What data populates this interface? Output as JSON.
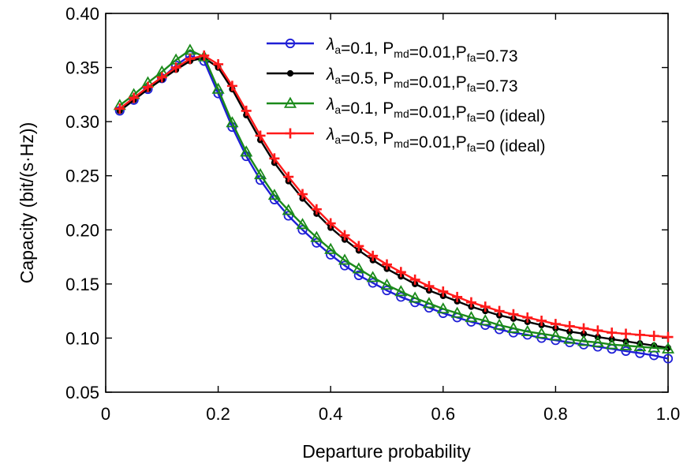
{
  "chart_data": {
    "type": "line",
    "title": "",
    "xlabel": "Departure probability",
    "ylabel": "Capacity (bit/(s·Hz))",
    "xlim": [
      0,
      1.0
    ],
    "ylim": [
      0.05,
      0.4
    ],
    "x_ticks": [
      0,
      0.2,
      0.4,
      0.6,
      0.8,
      1.0
    ],
    "x_tick_labels": [
      "0",
      "0.2",
      "0.4",
      "0.6",
      "0.8",
      "1.0"
    ],
    "y_ticks": [
      0.05,
      0.1,
      0.15,
      0.2,
      0.25,
      0.3,
      0.35,
      0.4
    ],
    "y_tick_labels": [
      "0.05",
      "0.10",
      "0.15",
      "0.20",
      "0.25",
      "0.30",
      "0.35",
      "0.40"
    ],
    "grid": false,
    "legend_position": "top-right",
    "x": [
      0.025,
      0.05,
      0.075,
      0.1,
      0.125,
      0.15,
      0.175,
      0.2,
      0.225,
      0.25,
      0.275,
      0.3,
      0.325,
      0.35,
      0.375,
      0.4,
      0.425,
      0.45,
      0.475,
      0.5,
      0.525,
      0.55,
      0.575,
      0.6,
      0.625,
      0.65,
      0.675,
      0.7,
      0.725,
      0.75,
      0.775,
      0.8,
      0.825,
      0.85,
      0.875,
      0.9,
      0.925,
      0.95,
      0.975,
      1.0
    ],
    "series": [
      {
        "legend": {
          "lambda": "λ",
          "lambda_sub": "a",
          "text1": "=0.1, P",
          "sub1": "md",
          "text2": "=0.01,P",
          "sub2": "fa",
          "text3": "=0.73"
        },
        "color": "#1f1fd6",
        "marker": "circle",
        "values": [
          0.31,
          0.32,
          0.33,
          0.34,
          0.352,
          0.361,
          0.356,
          0.326,
          0.295,
          0.268,
          0.246,
          0.228,
          0.213,
          0.2,
          0.188,
          0.177,
          0.167,
          0.158,
          0.151,
          0.144,
          0.138,
          0.133,
          0.128,
          0.123,
          0.119,
          0.115,
          0.112,
          0.108,
          0.105,
          0.103,
          0.1,
          0.098,
          0.096,
          0.094,
          0.092,
          0.09,
          0.088,
          0.086,
          0.084,
          0.081
        ]
      },
      {
        "legend": {
          "lambda": "λ",
          "lambda_sub": "a",
          "text1": "=0.5, P",
          "sub1": "md",
          "text2": "=0.01,P",
          "sub2": "fa",
          "text3": "=0.73"
        },
        "color": "#000000",
        "marker": "dot",
        "values": [
          0.31,
          0.32,
          0.33,
          0.339,
          0.348,
          0.356,
          0.359,
          0.35,
          0.33,
          0.306,
          0.283,
          0.262,
          0.245,
          0.229,
          0.215,
          0.202,
          0.191,
          0.181,
          0.172,
          0.164,
          0.157,
          0.15,
          0.144,
          0.139,
          0.134,
          0.129,
          0.125,
          0.121,
          0.118,
          0.115,
          0.112,
          0.109,
          0.106,
          0.104,
          0.101,
          0.099,
          0.097,
          0.095,
          0.093,
          0.091
        ]
      },
      {
        "legend": {
          "lambda": "λ",
          "lambda_sub": "a",
          "text1": "=0.1, P",
          "sub1": "md",
          "text2": "=0.01,P",
          "sub2": "fa",
          "text3": "=0 (ideal)"
        },
        "color": "#1a8a1a",
        "marker": "triangle",
        "values": [
          0.315,
          0.325,
          0.336,
          0.346,
          0.357,
          0.366,
          0.36,
          0.33,
          0.299,
          0.272,
          0.251,
          0.232,
          0.218,
          0.205,
          0.193,
          0.182,
          0.172,
          0.164,
          0.156,
          0.149,
          0.143,
          0.137,
          0.132,
          0.127,
          0.123,
          0.119,
          0.116,
          0.112,
          0.109,
          0.106,
          0.104,
          0.102,
          0.099,
          0.097,
          0.096,
          0.094,
          0.093,
          0.092,
          0.091,
          0.09
        ]
      },
      {
        "legend": {
          "lambda": "λ",
          "lambda_sub": "a",
          "text1": "=0.5, P",
          "sub1": "md",
          "text2": "=0.01,P",
          "sub2": "fa",
          "text3": "=0 (ideal)"
        },
        "color": "#ff1a1a",
        "marker": "plus",
        "values": [
          0.312,
          0.322,
          0.332,
          0.341,
          0.35,
          0.358,
          0.361,
          0.353,
          0.333,
          0.31,
          0.287,
          0.266,
          0.249,
          0.233,
          0.219,
          0.206,
          0.195,
          0.185,
          0.176,
          0.168,
          0.161,
          0.154,
          0.148,
          0.143,
          0.138,
          0.133,
          0.129,
          0.125,
          0.122,
          0.119,
          0.116,
          0.113,
          0.111,
          0.109,
          0.107,
          0.105,
          0.104,
          0.103,
          0.102,
          0.101
        ]
      }
    ]
  }
}
